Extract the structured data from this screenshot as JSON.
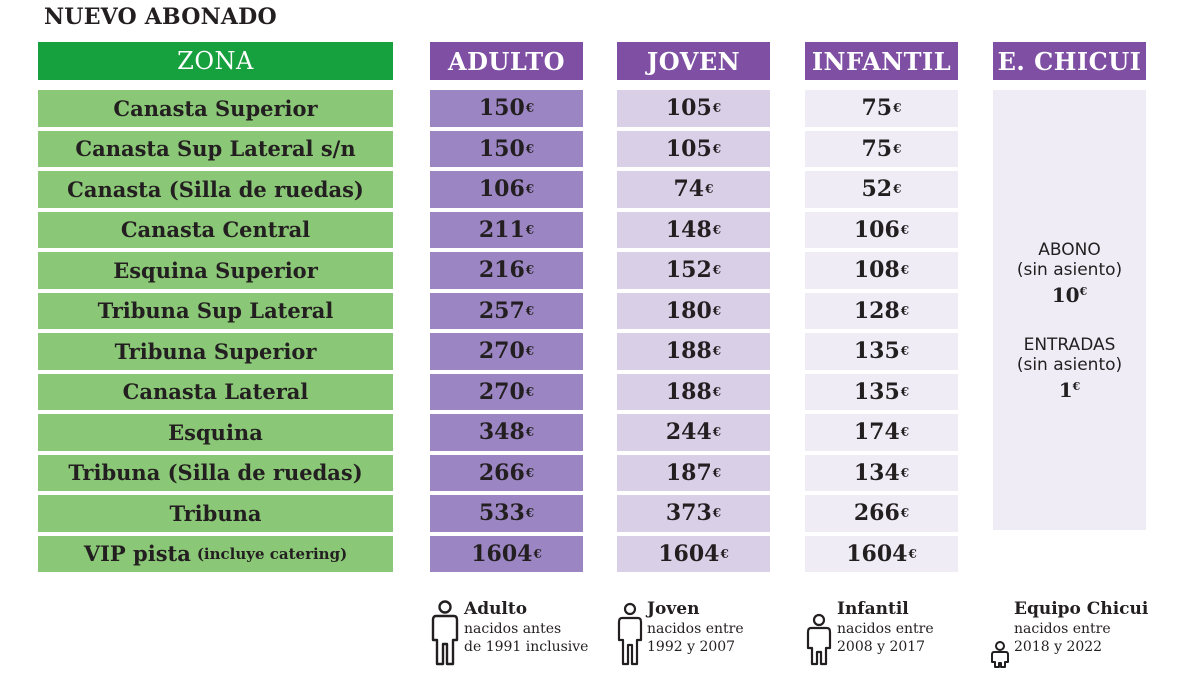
{
  "title": "NUEVO ABONADO",
  "headers": {
    "zona": "ZONA",
    "adulto": "ADULTO",
    "joven": "JOVEN",
    "infantil": "INFANTIL",
    "chicui": "E. CHICUI"
  },
  "currency": "€",
  "colors": {
    "zona_header": "#17a03e",
    "zona_row": "#8ac776",
    "purple_header": "#7e4fa2",
    "adulto_row": "#9b86c3",
    "joven_row": "#d9d0e8",
    "infantil_row": "#f0ecf6"
  },
  "rows": [
    {
      "zona": "Canasta Superior",
      "adulto": "150",
      "joven": "105",
      "infantil": "75"
    },
    {
      "zona": "Canasta Sup Lateral s/n",
      "adulto": "150",
      "joven": "105",
      "infantil": "75"
    },
    {
      "zona": "Canasta (Silla de ruedas)",
      "adulto": "106",
      "joven": "74",
      "infantil": "52"
    },
    {
      "zona": "Canasta Central",
      "adulto": "211",
      "joven": "148",
      "infantil": "106"
    },
    {
      "zona": "Esquina Superior",
      "adulto": "216",
      "joven": "152",
      "infantil": "108"
    },
    {
      "zona": "Tribuna Sup Lateral",
      "adulto": "257",
      "joven": "180",
      "infantil": "128"
    },
    {
      "zona": "Tribuna Superior",
      "adulto": "270",
      "joven": "188",
      "infantil": "135"
    },
    {
      "zona": "Canasta Lateral",
      "adulto": "270",
      "joven": "188",
      "infantil": "135"
    },
    {
      "zona": "Esquina",
      "adulto": "348",
      "joven": "244",
      "infantil": "174"
    },
    {
      "zona": "Tribuna (Silla de ruedas)",
      "adulto": "266",
      "joven": "187",
      "infantil": "134"
    },
    {
      "zona": "Tribuna",
      "adulto": "533",
      "joven": "373",
      "infantil": "266"
    },
    {
      "zona": "VIP pista",
      "zona_note": "(incluye catering)",
      "adulto": "1604",
      "joven": "1604",
      "infantil": "1604"
    }
  ],
  "chicui": {
    "abono_label": "ABONO",
    "abono_note": "(sin asiento)",
    "abono_price": "10",
    "entradas_label": "ENTRADAS",
    "entradas_note": "(sin asiento)",
    "entradas_price": "1"
  },
  "legend": [
    {
      "key": "adulto",
      "icon": "adult-figure-icon",
      "title": "Adulto",
      "line1": "nacidos antes",
      "line2": "de 1991 inclusive"
    },
    {
      "key": "joven",
      "icon": "youth-figure-icon",
      "title": "Joven",
      "line1": "nacidos entre",
      "line2": "1992 y 2007"
    },
    {
      "key": "infantil",
      "icon": "child-figure-icon",
      "title": "Infantil",
      "line1": "nacidos entre",
      "line2": "2008 y 2017"
    },
    {
      "key": "chicui",
      "icon": "baby-figure-icon",
      "title": "Equipo Chicui",
      "line1": "nacidos entre",
      "line2": "2018 y 2022"
    }
  ]
}
